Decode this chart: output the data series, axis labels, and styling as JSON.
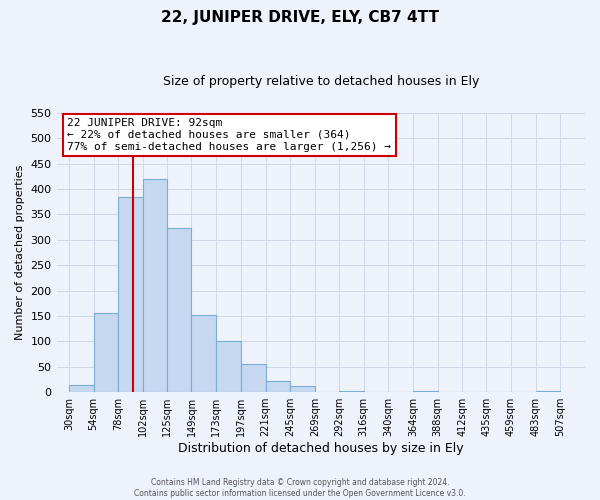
{
  "title": "22, JUNIPER DRIVE, ELY, CB7 4TT",
  "subtitle": "Size of property relative to detached houses in Ely",
  "xlabel": "Distribution of detached houses by size in Ely",
  "ylabel": "Number of detached properties",
  "bar_left_edges": [
    30,
    54,
    78,
    102,
    125,
    149,
    173,
    197,
    221,
    245,
    269,
    292,
    316,
    340,
    364,
    388,
    412,
    435,
    459,
    483
  ],
  "bar_heights": [
    15,
    156,
    385,
    420,
    323,
    152,
    101,
    55,
    22,
    12,
    0,
    3,
    0,
    0,
    2,
    0,
    0,
    0,
    0,
    2
  ],
  "bar_widths": [
    24,
    24,
    24,
    23,
    24,
    24,
    24,
    24,
    24,
    24,
    23,
    24,
    24,
    24,
    24,
    24,
    23,
    24,
    24,
    24
  ],
  "bar_color": "#c5d8f0",
  "bar_edge_color": "#7aadd4",
  "vline_x": 92,
  "vline_color": "#cc0000",
  "annotation_line1": "22 JUNIPER DRIVE: 92sqm",
  "annotation_line2": "← 22% of detached houses are smaller (364)",
  "annotation_line3": "77% of semi-detached houses are larger (1,256) →",
  "annotation_box_edge_color": "#cc0000",
  "annotation_box_face_color": "white",
  "ylim": [
    0,
    550
  ],
  "yticks": [
    0,
    50,
    100,
    150,
    200,
    250,
    300,
    350,
    400,
    450,
    500,
    550
  ],
  "xtick_labels": [
    "30sqm",
    "54sqm",
    "78sqm",
    "102sqm",
    "125sqm",
    "149sqm",
    "173sqm",
    "197sqm",
    "221sqm",
    "245sqm",
    "269sqm",
    "292sqm",
    "316sqm",
    "340sqm",
    "364sqm",
    "388sqm",
    "412sqm",
    "435sqm",
    "459sqm",
    "483sqm",
    "507sqm"
  ],
  "xtick_positions": [
    30,
    54,
    78,
    102,
    125,
    149,
    173,
    197,
    221,
    245,
    269,
    292,
    316,
    340,
    364,
    388,
    412,
    435,
    459,
    483,
    507
  ],
  "xlim": [
    18,
    531
  ],
  "grid_color": "#d0d8e8",
  "footer_line1": "Contains HM Land Registry data © Crown copyright and database right 2024.",
  "footer_line2": "Contains public sector information licensed under the Open Government Licence v3.0.",
  "background_color": "#eef2fb",
  "title_fontsize": 11,
  "subtitle_fontsize": 9,
  "ylabel_fontsize": 8,
  "xlabel_fontsize": 9
}
